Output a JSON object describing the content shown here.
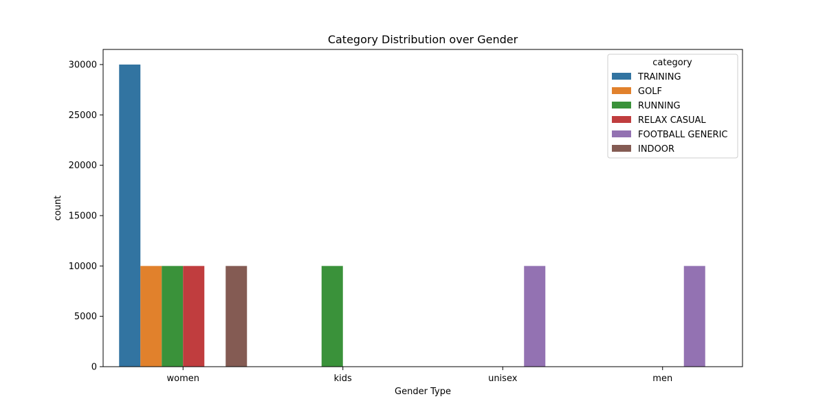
{
  "chart_data": {
    "type": "bar",
    "title": "Category Distribution over Gender",
    "xlabel": "Gender Type",
    "ylabel": "count",
    "categories": [
      "women",
      "kids",
      "unisex",
      "men"
    ],
    "ylim": [
      0,
      31500
    ],
    "yticks": [
      0,
      5000,
      10000,
      15000,
      20000,
      25000,
      30000
    ],
    "grid": false,
    "legend": {
      "title": "category",
      "placement": "top-right"
    },
    "series": [
      {
        "name": "TRAINING",
        "color": "#3274a1",
        "values": [
          30000,
          0,
          0,
          0
        ]
      },
      {
        "name": "GOLF",
        "color": "#e1812c",
        "values": [
          10000,
          0,
          0,
          0
        ]
      },
      {
        "name": "RUNNING",
        "color": "#3a923a",
        "values": [
          10000,
          10000,
          0,
          0
        ]
      },
      {
        "name": "RELAX CASUAL",
        "color": "#c03d3e",
        "values": [
          10000,
          0,
          0,
          0
        ]
      },
      {
        "name": "FOOTBALL GENERIC",
        "color": "#9372b2",
        "values": [
          0,
          0,
          10000,
          10000
        ]
      },
      {
        "name": "INDOOR",
        "color": "#845b53",
        "values": [
          10000,
          0,
          0,
          0
        ]
      }
    ]
  }
}
